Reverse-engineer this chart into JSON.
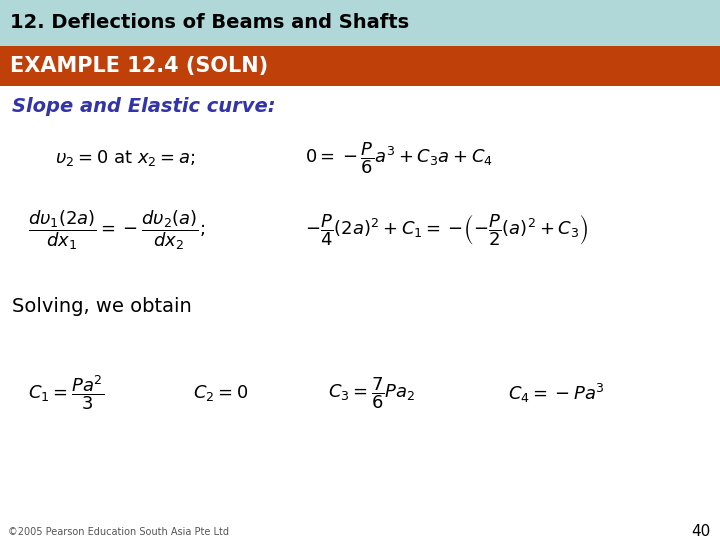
{
  "title_text": "12. Deflections of Beams and Shafts",
  "title_bg_color": "#b0d8d8",
  "title_text_color": "#000000",
  "banner_text": "EXAMPLE 12.4 (SOLN)",
  "banner_bg_color": "#c0400a",
  "banner_text_color": "#ffffff",
  "bg_color": "#ffffff",
  "slope_label": "Slope and Elastic curve:",
  "slope_label_color": "#3333aa",
  "solving_label": "Solving, we obtain",
  "solving_label_color": "#000000",
  "footer_text": "©2005 Pearson Education South Asia Pte Ltd",
  "page_number": "40",
  "title_fontsize": 14,
  "banner_fontsize": 15,
  "slope_fontsize": 14,
  "eq_fontsize": 13,
  "solve_fontsize": 14,
  "footer_fontsize": 7,
  "page_fontsize": 11,
  "title_bar_height": 46,
  "banner_bar_height": 40
}
